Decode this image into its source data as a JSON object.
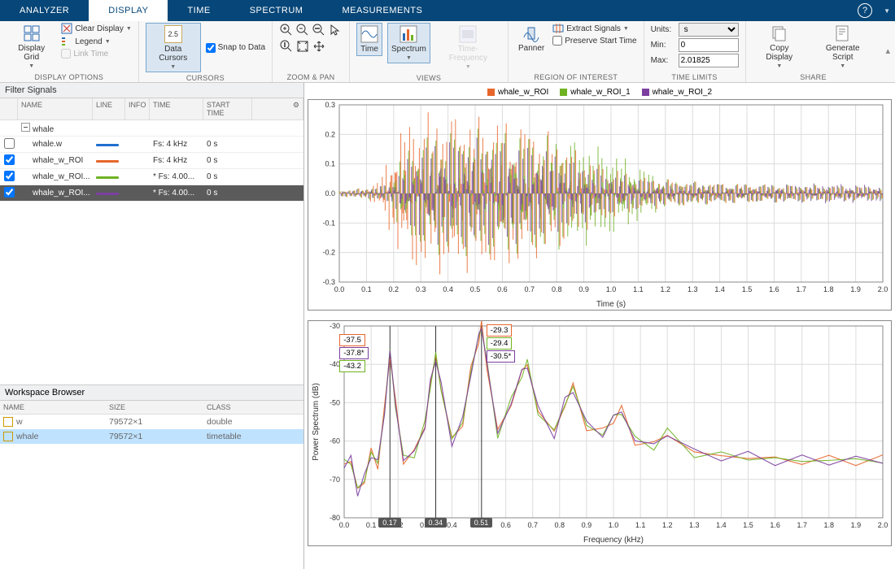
{
  "menubar": {
    "tabs": [
      "ANALYZER",
      "DISPLAY",
      "TIME",
      "SPECTRUM",
      "MEASUREMENTS"
    ],
    "active": 1
  },
  "toolstrip": {
    "groups": {
      "display_options": {
        "label": "DISPLAY OPTIONS",
        "display_grid": "Display Grid",
        "clear_display": "Clear Display",
        "legend": "Legend",
        "link_time": "Link Time"
      },
      "cursors": {
        "label": "CURSORS",
        "data_cursors": "Data Cursors",
        "snap": "Snap to Data",
        "badge": "2.5"
      },
      "zoom": {
        "label": "ZOOM & PAN"
      },
      "views": {
        "label": "VIEWS",
        "time": "Time",
        "spectrum": "Spectrum",
        "tf": "Time-Frequency"
      },
      "roi": {
        "label": "REGION OF INTEREST",
        "panner": "Panner",
        "extract": "Extract Signals",
        "preserve": "Preserve Start Time"
      },
      "time_limits": {
        "label": "TIME LIMITS",
        "units_lbl": "Units:",
        "units_val": "s",
        "min_lbl": "Min:",
        "min_val": "0",
        "max_lbl": "Max:",
        "max_val": "2.01825"
      },
      "share": {
        "label": "SHARE",
        "copy": "Copy Display",
        "gen": "Generate Script"
      }
    }
  },
  "filter_panel": {
    "title": "Filter Signals",
    "cols": [
      "",
      "NAME",
      "LINE",
      "INFO",
      "TIME",
      "START TIME"
    ],
    "group": "whale",
    "rows": [
      {
        "chk": false,
        "name": "whale.w",
        "color": "#1f6fd0",
        "time": "Fs: 4 kHz",
        "start": "0 s",
        "sel": false
      },
      {
        "chk": true,
        "name": "whale_w_ROI",
        "color": "#e7662b",
        "time": "Fs: 4 kHz",
        "start": "0 s",
        "sel": false
      },
      {
        "chk": true,
        "name": "whale_w_ROI...",
        "color": "#6fb222",
        "time": "* Fs: 4.00...",
        "start": "0 s",
        "sel": false
      },
      {
        "chk": true,
        "name": "whale_w_ROI...",
        "color": "#7c3fa0",
        "time": "* Fs: 4.00...",
        "start": "0 s",
        "sel": true
      }
    ]
  },
  "workspace": {
    "title": "Workspace Browser",
    "cols": [
      "NAME",
      "SIZE",
      "CLASS"
    ],
    "rows": [
      {
        "name": "w",
        "size": "79572×1",
        "cls": "double",
        "sel": false
      },
      {
        "name": "whale",
        "size": "79572×1",
        "cls": "timetable",
        "sel": true
      }
    ]
  },
  "chart_colors": {
    "roi": "#e7662b",
    "roi1": "#6fb222",
    "roi2": "#7c3fa0",
    "grid": "#dcdcdc",
    "axis": "#333333",
    "bg": "#ffffff"
  },
  "time_chart": {
    "legend": [
      "whale_w_ROI",
      "whale_w_ROI_1",
      "whale_w_ROI_2"
    ],
    "xlim": [
      0,
      2.0
    ],
    "xtick_step": 0.1,
    "ylim": [
      -0.3,
      0.3
    ],
    "ytick_step": 0.1,
    "xlabel": "Time (s)",
    "envelope_roi": [
      0,
      0.01,
      0.1,
      0.02,
      0.15,
      0.05,
      0.2,
      0.18,
      0.25,
      0.26,
      0.3,
      0.28,
      0.4,
      0.28,
      0.5,
      0.27,
      0.6,
      0.26,
      0.7,
      0.24,
      0.8,
      0.2,
      0.9,
      0.13,
      1.0,
      0.09,
      1.1,
      0.06,
      1.3,
      0.04,
      1.6,
      0.03,
      1.9,
      0.025,
      2.0,
      0.02
    ],
    "envelope_roi1": [
      0,
      0.01,
      0.1,
      0.02,
      0.18,
      0.03,
      0.22,
      0.12,
      0.3,
      0.2,
      0.4,
      0.22,
      0.5,
      0.22,
      0.6,
      0.22,
      0.7,
      0.21,
      0.8,
      0.2,
      0.9,
      0.18,
      1.0,
      0.15,
      1.1,
      0.1,
      1.2,
      0.05,
      1.4,
      0.035,
      1.7,
      0.03,
      2.0,
      0.025
    ],
    "envelope_roi2": [
      0,
      0.01,
      0.1,
      0.015,
      0.2,
      0.04,
      0.25,
      0.12,
      0.3,
      0.17,
      0.4,
      0.19,
      0.5,
      0.19,
      0.6,
      0.18,
      0.7,
      0.17,
      0.8,
      0.14,
      0.9,
      0.1,
      1.0,
      0.07,
      1.2,
      0.04,
      1.5,
      0.03,
      1.8,
      0.035,
      2.0,
      0.03
    ]
  },
  "spectrum_chart": {
    "xlim": [
      0,
      2.0
    ],
    "xtick_step": 0.1,
    "ylim": [
      -80,
      -30
    ],
    "ytick_step": 10,
    "xlabel": "Frequency (kHz)",
    "ylabel": "Power Spectrum (dB)",
    "cursor_freqs": [
      0.17,
      0.34,
      0.51
    ],
    "markers_left": [
      {
        "v": "-37.5",
        "c": "#e7662b"
      },
      {
        "v": "-37.8*",
        "c": "#7c3fa0"
      },
      {
        "v": "-43.2",
        "c": "#6fb222"
      }
    ],
    "markers_right": [
      {
        "v": "-29.3",
        "c": "#e7662b"
      },
      {
        "v": "-29.4",
        "c": "#6fb222"
      },
      {
        "v": "-30.5*",
        "c": "#7c3fa0"
      }
    ],
    "trace_pts": [
      0,
      -66,
      0.025,
      -65,
      0.05,
      -73,
      0.075,
      -70,
      0.1,
      -63,
      0.125,
      -66,
      0.15,
      -52,
      0.17,
      -37,
      0.19,
      -50,
      0.22,
      -65,
      0.26,
      -63,
      0.3,
      -56,
      0.32,
      -45,
      0.34,
      -38,
      0.36,
      -46,
      0.4,
      -60,
      0.44,
      -55,
      0.47,
      -42,
      0.5,
      -33,
      0.51,
      -30,
      0.53,
      -40,
      0.57,
      -58,
      0.62,
      -50,
      0.66,
      -42,
      0.68,
      -40,
      0.72,
      -52,
      0.78,
      -58,
      0.82,
      -50,
      0.85,
      -46,
      0.9,
      -56,
      0.96,
      -58,
      1.0,
      -54,
      1.03,
      -52,
      1.08,
      -60,
      1.15,
      -61,
      1.2,
      -58,
      1.3,
      -63,
      1.4,
      -64,
      1.5,
      -64,
      1.6,
      -65,
      1.7,
      -65,
      1.8,
      -65,
      1.9,
      -65,
      2.0,
      -65
    ]
  }
}
